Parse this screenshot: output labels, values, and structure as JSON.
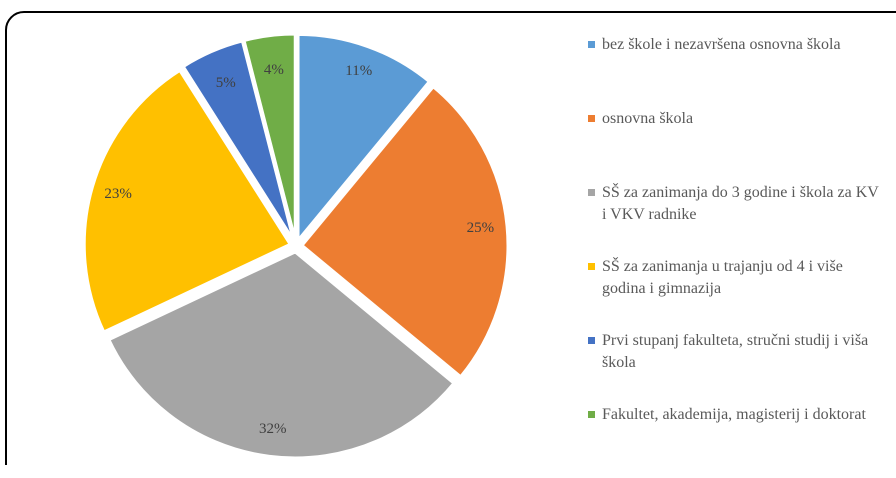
{
  "chart_data": {
    "type": "pie",
    "categories": [
      "bez škole i nezavršena osnovna škola",
      "osnovna škola",
      "SŠ za zanimanja do 3 godine i škola za KV i VKV radnike",
      "SŠ za zanimanja u trajanju od 4 i više godina i gimnazija",
      "Prvi stupanj fakulteta, stručni studij i viša škola",
      "Fakultet, akademija, magisterij i doktorat"
    ],
    "values": [
      11,
      25,
      32,
      23,
      5,
      4
    ],
    "value_labels": [
      "11%",
      "25%",
      "32%",
      "23%",
      "5%",
      "4%"
    ],
    "colors": [
      "#5b9bd5",
      "#ed7d31",
      "#a5a5a5",
      "#ffc000",
      "#4472c4",
      "#70ad47"
    ],
    "legend": "right"
  }
}
